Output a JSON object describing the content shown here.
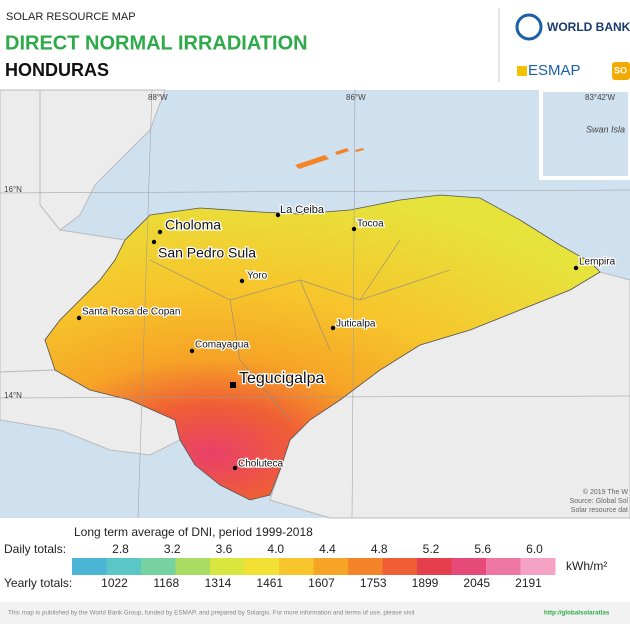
{
  "header": {
    "subtitle": "SOLAR RESOURCE MAP",
    "title": "DIRECT NORMAL IRRADIATION",
    "country": "HONDURAS",
    "logos": [
      "WORLD BANK G",
      "ESMAP",
      "SO"
    ]
  },
  "map": {
    "graticule": [
      "88°W",
      "86°W",
      "16°N",
      "14°N"
    ],
    "inset": {
      "longitude": "83°42'W",
      "place": "Swan Isla"
    },
    "cities": [
      "Choloma",
      "San Pedro Sula",
      "La Ceiba",
      "Tocoa",
      "Yoro",
      "Lempira",
      "Santa Rosa de Copan",
      "Juticalpa",
      "Comayagua",
      "Tegucigalpa",
      "Choluteca"
    ],
    "credits": [
      "© 2019 The W",
      "Source: Global Sol",
      "Solar resource dat"
    ]
  },
  "legend": {
    "caption": "Long term average of DNI, period 1999-2018",
    "daily_label": "Daily totals:",
    "daily": [
      2.8,
      3.2,
      3.6,
      4.0,
      4.4,
      4.8,
      5.2,
      5.6,
      6.0
    ],
    "yearly_label": "Yearly totals:",
    "yearly": [
      1022,
      1168,
      1314,
      1461,
      1607,
      1753,
      1899,
      2045,
      2191
    ],
    "unit": "kWh/m²",
    "colors": [
      "#4cb4d4",
      "#5ac6c6",
      "#77d2a2",
      "#a9dc62",
      "#d8e63e",
      "#f3e034",
      "#f7c52c",
      "#f6a426",
      "#f4842a",
      "#ef5e35",
      "#e53f4e",
      "#e54a78",
      "#ee77a3",
      "#f5a3c4"
    ]
  },
  "footer": {
    "text": "This map is published by the World Bank Group, funded by ESMAP, and prepared by Solargis. For more information and terms of use, please visit",
    "link": "http://globalsolaratlas"
  }
}
